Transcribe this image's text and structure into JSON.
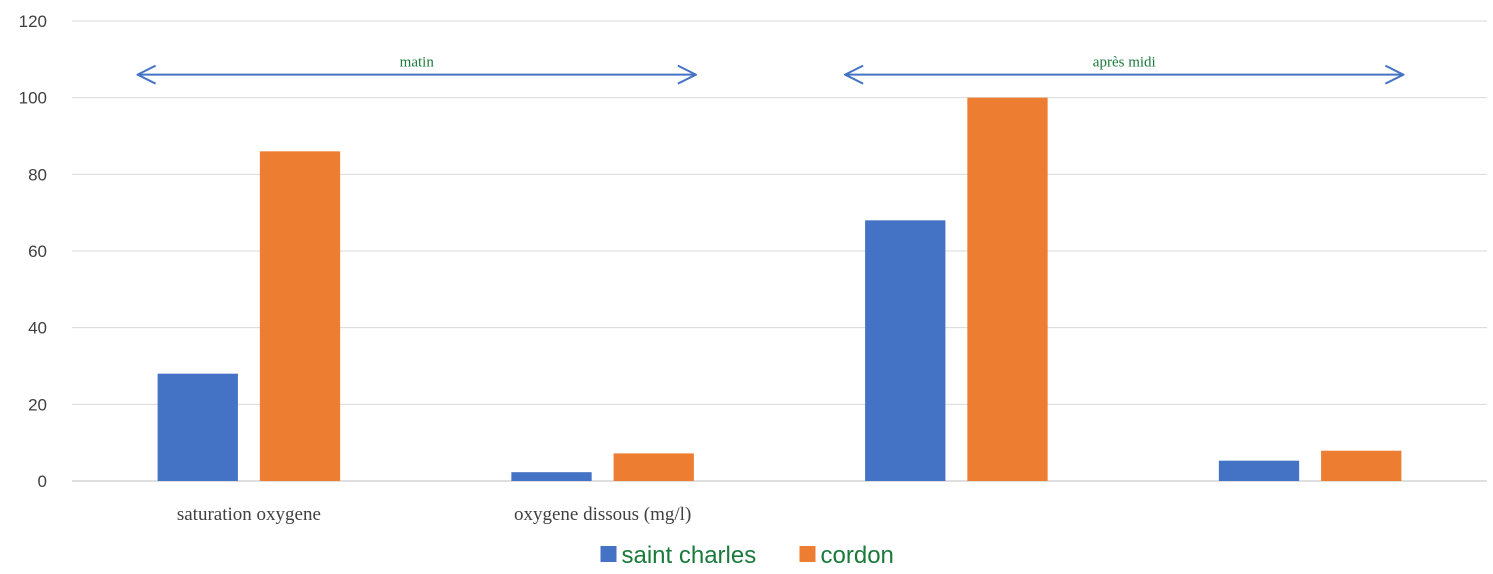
{
  "chart_data": {
    "type": "bar",
    "categories": [
      "saturation oxygene",
      "oxygene dissous (mg/l)",
      "",
      ""
    ],
    "series": [
      {
        "name": "saint charles",
        "color": "#4472C4",
        "values": [
          28,
          2.3,
          68,
          5.3
        ]
      },
      {
        "name": "cordon",
        "color": "#ED7D31",
        "values": [
          86,
          7.2,
          100,
          7.9
        ]
      }
    ],
    "ylim": [
      0,
      120
    ],
    "yticks": [
      0,
      20,
      40,
      60,
      80,
      100,
      120
    ],
    "grid": true,
    "legend_position": "bottom-center",
    "annotations": [
      {
        "label": "matin",
        "from_category": 0,
        "to_category": 1,
        "y": 106,
        "color": "#4472C4"
      },
      {
        "label": "après midi",
        "from_category": 2,
        "to_category": 3,
        "y": 106,
        "color": "#4472C4"
      }
    ]
  }
}
